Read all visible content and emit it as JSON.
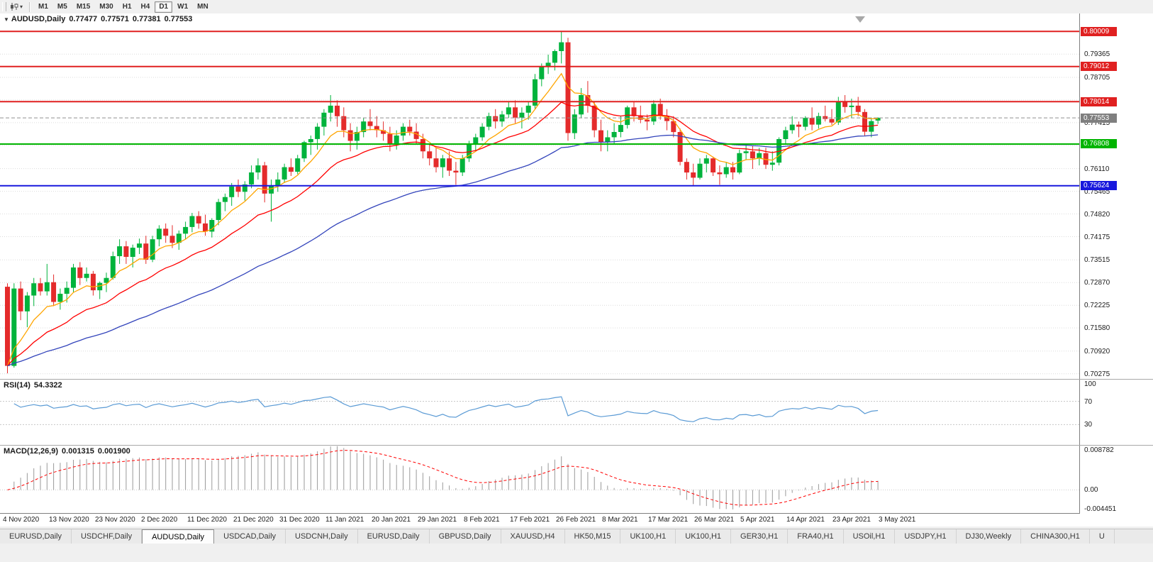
{
  "icons": {
    "caret": "▾",
    "marker": "▼"
  },
  "toolbar": {
    "periods": [
      "M1",
      "M5",
      "M15",
      "M30",
      "H1",
      "H4",
      "D1",
      "W1",
      "MN"
    ],
    "active_period": "D1"
  },
  "chart": {
    "symbol": "AUDUSD,Daily",
    "ohlc": {
      "open": "0.77477",
      "high": "0.77571",
      "low": "0.77381",
      "close": "0.77553"
    },
    "y_max": 0.8052,
    "y_min": 0.7013,
    "price_ticks": [
      0.8001,
      0.79365,
      0.78705,
      0.7806,
      0.77415,
      0.7677,
      0.7611,
      0.75465,
      0.7482,
      0.74175,
      0.73515,
      0.7287,
      0.72225,
      0.7158,
      0.7092,
      0.70275
    ],
    "levels": [
      {
        "value": 0.80009,
        "label": "0.80009",
        "color": "#e02020",
        "type": "resistance"
      },
      {
        "value": 0.79012,
        "label": "0.79012",
        "color": "#e02020",
        "type": "resistance"
      },
      {
        "value": 0.78014,
        "label": "0.78014",
        "color": "#e02020",
        "type": "resistance"
      },
      {
        "value": 0.76808,
        "label": "0.76808",
        "color": "#00b400",
        "type": "support"
      },
      {
        "value": 0.75624,
        "label": "0.75624",
        "color": "#1818dd",
        "type": "support"
      }
    ],
    "current_price": {
      "value": 0.77553,
      "label": "0.77553",
      "color": "#7f7f7f"
    },
    "date_labels": [
      "4 Nov 2020",
      "13 Nov 2020",
      "23 Nov 2020",
      "2 Dec 2020",
      "11 Dec 2020",
      "21 Dec 2020",
      "31 Dec 2020",
      "11 Jan 2021",
      "20 Jan 2021",
      "29 Jan 2021",
      "8 Feb 2021",
      "17 Feb 2021",
      "26 Feb 2021",
      "8 Mar 2021",
      "17 Mar 2021",
      "26 Mar 2021",
      "5 Apr 2021",
      "14 Apr 2021",
      "23 Apr 2021",
      "3 May 2021"
    ],
    "candles": [
      [
        0.7275,
        0.7285,
        0.7029,
        0.705
      ],
      [
        0.705,
        0.7285,
        0.7045,
        0.727
      ],
      [
        0.727,
        0.729,
        0.718,
        0.7205
      ],
      [
        0.7205,
        0.726,
        0.716,
        0.725
      ],
      [
        0.725,
        0.73,
        0.722,
        0.7285
      ],
      [
        0.7285,
        0.73,
        0.725,
        0.7262
      ],
      [
        0.7262,
        0.734,
        0.725,
        0.7288
      ],
      [
        0.7288,
        0.731,
        0.722,
        0.7232
      ],
      [
        0.7232,
        0.727,
        0.721,
        0.7255
      ],
      [
        0.7255,
        0.729,
        0.723,
        0.7272
      ],
      [
        0.7272,
        0.734,
        0.726,
        0.733
      ],
      [
        0.733,
        0.7345,
        0.728,
        0.73
      ],
      [
        0.73,
        0.733,
        0.729,
        0.7312
      ],
      [
        0.7312,
        0.732,
        0.725,
        0.7265
      ],
      [
        0.7265,
        0.729,
        0.724,
        0.7286
      ],
      [
        0.7286,
        0.7315,
        0.726,
        0.73
      ],
      [
        0.73,
        0.7375,
        0.7295,
        0.7362
      ],
      [
        0.7362,
        0.741,
        0.734,
        0.739
      ],
      [
        0.739,
        0.7405,
        0.734,
        0.736
      ],
      [
        0.736,
        0.7395,
        0.733,
        0.7386
      ],
      [
        0.7386,
        0.7412,
        0.7368,
        0.7398
      ],
      [
        0.7398,
        0.742,
        0.734,
        0.7352
      ],
      [
        0.7352,
        0.742,
        0.7345,
        0.741
      ],
      [
        0.741,
        0.745,
        0.739,
        0.744
      ],
      [
        0.744,
        0.7455,
        0.74,
        0.742
      ],
      [
        0.742,
        0.745,
        0.7385,
        0.74
      ],
      [
        0.74,
        0.7435,
        0.738,
        0.7426
      ],
      [
        0.7426,
        0.746,
        0.741,
        0.7445
      ],
      [
        0.7445,
        0.7485,
        0.743,
        0.7476
      ],
      [
        0.7476,
        0.749,
        0.744,
        0.7455
      ],
      [
        0.7455,
        0.748,
        0.742,
        0.7432
      ],
      [
        0.7432,
        0.747,
        0.7415,
        0.7465
      ],
      [
        0.7465,
        0.7525,
        0.745,
        0.7516
      ],
      [
        0.7516,
        0.754,
        0.749,
        0.753
      ],
      [
        0.753,
        0.757,
        0.7505,
        0.756
      ],
      [
        0.756,
        0.758,
        0.753,
        0.7545
      ],
      [
        0.7545,
        0.7575,
        0.752,
        0.7566
      ],
      [
        0.7566,
        0.762,
        0.7555,
        0.76
      ],
      [
        0.76,
        0.764,
        0.758,
        0.762
      ],
      [
        0.762,
        0.763,
        0.7515,
        0.754
      ],
      [
        0.754,
        0.758,
        0.746,
        0.7562
      ],
      [
        0.7562,
        0.76,
        0.7545,
        0.758
      ],
      [
        0.758,
        0.7625,
        0.757,
        0.7615
      ],
      [
        0.7615,
        0.764,
        0.759,
        0.7602
      ],
      [
        0.7602,
        0.765,
        0.7595,
        0.764
      ],
      [
        0.764,
        0.769,
        0.763,
        0.7686
      ],
      [
        0.7686,
        0.7705,
        0.765,
        0.7695
      ],
      [
        0.7695,
        0.774,
        0.7665,
        0.773
      ],
      [
        0.773,
        0.778,
        0.7705,
        0.777
      ],
      [
        0.777,
        0.782,
        0.7745,
        0.779
      ],
      [
        0.779,
        0.7805,
        0.773,
        0.776
      ],
      [
        0.776,
        0.7785,
        0.77,
        0.772
      ],
      [
        0.772,
        0.774,
        0.766,
        0.769
      ],
      [
        0.769,
        0.773,
        0.7665,
        0.7715
      ],
      [
        0.7715,
        0.7755,
        0.77,
        0.7745
      ],
      [
        0.7745,
        0.778,
        0.772,
        0.7732
      ],
      [
        0.7732,
        0.776,
        0.77,
        0.772
      ],
      [
        0.772,
        0.7745,
        0.769,
        0.771
      ],
      [
        0.771,
        0.773,
        0.766,
        0.768
      ],
      [
        0.768,
        0.772,
        0.7665,
        0.7705
      ],
      [
        0.7705,
        0.774,
        0.769,
        0.773
      ],
      [
        0.773,
        0.775,
        0.7705,
        0.7716
      ],
      [
        0.7716,
        0.774,
        0.768,
        0.7695
      ],
      [
        0.7695,
        0.771,
        0.764,
        0.766
      ],
      [
        0.766,
        0.768,
        0.762,
        0.764
      ],
      [
        0.764,
        0.767,
        0.76,
        0.7615
      ],
      [
        0.7615,
        0.765,
        0.7585,
        0.764
      ],
      [
        0.764,
        0.766,
        0.759,
        0.7605
      ],
      [
        0.7605,
        0.763,
        0.7565,
        0.76
      ],
      [
        0.76,
        0.765,
        0.759,
        0.764
      ],
      [
        0.764,
        0.769,
        0.763,
        0.768
      ],
      [
        0.768,
        0.771,
        0.766,
        0.77
      ],
      [
        0.77,
        0.774,
        0.769,
        0.773
      ],
      [
        0.773,
        0.777,
        0.772,
        0.776
      ],
      [
        0.776,
        0.778,
        0.7725,
        0.7745
      ],
      [
        0.7745,
        0.7775,
        0.773,
        0.7765
      ],
      [
        0.7765,
        0.78,
        0.7755,
        0.7785
      ],
      [
        0.7785,
        0.7805,
        0.774,
        0.7756
      ],
      [
        0.7756,
        0.7785,
        0.7725,
        0.777
      ],
      [
        0.777,
        0.78,
        0.775,
        0.779
      ],
      [
        0.779,
        0.788,
        0.778,
        0.7865
      ],
      [
        0.7865,
        0.791,
        0.7845,
        0.79
      ],
      [
        0.79,
        0.7935,
        0.788,
        0.7912
      ],
      [
        0.7912,
        0.795,
        0.789,
        0.7945
      ],
      [
        0.7945,
        0.8001,
        0.791,
        0.797
      ],
      [
        0.797,
        0.7983,
        0.769,
        0.7712
      ],
      [
        0.7712,
        0.778,
        0.7695,
        0.7765
      ],
      [
        0.7765,
        0.784,
        0.7755,
        0.782
      ],
      [
        0.782,
        0.786,
        0.777,
        0.779
      ],
      [
        0.779,
        0.78,
        0.77,
        0.772
      ],
      [
        0.772,
        0.775,
        0.766,
        0.7686
      ],
      [
        0.7686,
        0.772,
        0.766,
        0.77
      ],
      [
        0.77,
        0.774,
        0.768,
        0.7715
      ],
      [
        0.7715,
        0.776,
        0.77,
        0.7735
      ],
      [
        0.7735,
        0.779,
        0.7725,
        0.7785
      ],
      [
        0.7785,
        0.78,
        0.7745,
        0.776
      ],
      [
        0.776,
        0.779,
        0.774,
        0.775
      ],
      [
        0.775,
        0.7765,
        0.772,
        0.7745
      ],
      [
        0.7745,
        0.7805,
        0.7735,
        0.7795
      ],
      [
        0.7795,
        0.781,
        0.775,
        0.776
      ],
      [
        0.776,
        0.778,
        0.772,
        0.7746
      ],
      [
        0.7746,
        0.776,
        0.77,
        0.7715
      ],
      [
        0.7715,
        0.7725,
        0.762,
        0.763
      ],
      [
        0.763,
        0.764,
        0.758,
        0.76
      ],
      [
        0.76,
        0.7625,
        0.7562,
        0.7585
      ],
      [
        0.7585,
        0.764,
        0.758,
        0.7625
      ],
      [
        0.7625,
        0.765,
        0.76,
        0.764
      ],
      [
        0.764,
        0.7645,
        0.759,
        0.76
      ],
      [
        0.76,
        0.762,
        0.7565,
        0.7595
      ],
      [
        0.7595,
        0.763,
        0.7585,
        0.7615
      ],
      [
        0.7615,
        0.763,
        0.758,
        0.76
      ],
      [
        0.76,
        0.7665,
        0.7595,
        0.7655
      ],
      [
        0.7655,
        0.768,
        0.7635,
        0.766
      ],
      [
        0.766,
        0.7675,
        0.761,
        0.764
      ],
      [
        0.764,
        0.767,
        0.762,
        0.7655
      ],
      [
        0.7655,
        0.767,
        0.761,
        0.7622
      ],
      [
        0.7622,
        0.766,
        0.7605,
        0.7628
      ],
      [
        0.7628,
        0.77,
        0.762,
        0.7695
      ],
      [
        0.7695,
        0.773,
        0.768,
        0.772
      ],
      [
        0.772,
        0.776,
        0.771,
        0.7736
      ],
      [
        0.7736,
        0.7745,
        0.77,
        0.773
      ],
      [
        0.773,
        0.776,
        0.772,
        0.7755
      ],
      [
        0.7755,
        0.7785,
        0.772,
        0.7736
      ],
      [
        0.7736,
        0.777,
        0.7725,
        0.776
      ],
      [
        0.776,
        0.779,
        0.7745,
        0.7752
      ],
      [
        0.7752,
        0.778,
        0.7735,
        0.7742
      ],
      [
        0.7742,
        0.7815,
        0.7735,
        0.78
      ],
      [
        0.78,
        0.782,
        0.777,
        0.7786
      ],
      [
        0.7786,
        0.781,
        0.7755,
        0.779
      ],
      [
        0.779,
        0.7815,
        0.776,
        0.7772
      ],
      [
        0.7772,
        0.778,
        0.7705,
        0.7716
      ],
      [
        0.7716,
        0.7756,
        0.77,
        0.7746
      ],
      [
        0.77477,
        0.77571,
        0.77381,
        0.77553
      ]
    ]
  },
  "rsi": {
    "name": "RSI(14)",
    "value": "54.3322",
    "period": 14,
    "axis_labels": [
      "100",
      "70",
      "30"
    ],
    "upper_level": 70,
    "lower_level": 30,
    "line_color": "#5b9bd5"
  },
  "macd": {
    "name": "MACD(12,26,9)",
    "main_value": "0.001315",
    "signal_value": "0.001900",
    "fast": 12,
    "slow": 26,
    "signal": 9,
    "axis_max": 0.008782,
    "axis_min": -0.004451,
    "axis_labels": [
      "0.008782",
      "0.00",
      "-0.004451"
    ]
  },
  "tabs": {
    "items": [
      "EURUSD,Daily",
      "USDCHF,Daily",
      "AUDUSD,Daily",
      "USDCAD,Daily",
      "USDCNH,Daily",
      "EURUSD,Daily",
      "GBPUSD,Daily",
      "XAUUSD,H4",
      "HK50,M15",
      "UK100,H1",
      "UK100,H1",
      "GER30,H1",
      "FRA40,H1",
      "USOil,H1",
      "USDJPY,H1",
      "DJ30,Weekly",
      "CHINA300,H1",
      "U"
    ],
    "active_index": 2
  },
  "colors": {
    "up": "#00b33c",
    "down": "#e42b2b",
    "ma_fast": "#ffa500",
    "ma_mid": "#ff0000",
    "ma_slow": "#3344bb",
    "grid": "#dcdcdc",
    "hist": "#9a9a9a",
    "signal_line": "#ff0000",
    "current_line": "#909090"
  }
}
